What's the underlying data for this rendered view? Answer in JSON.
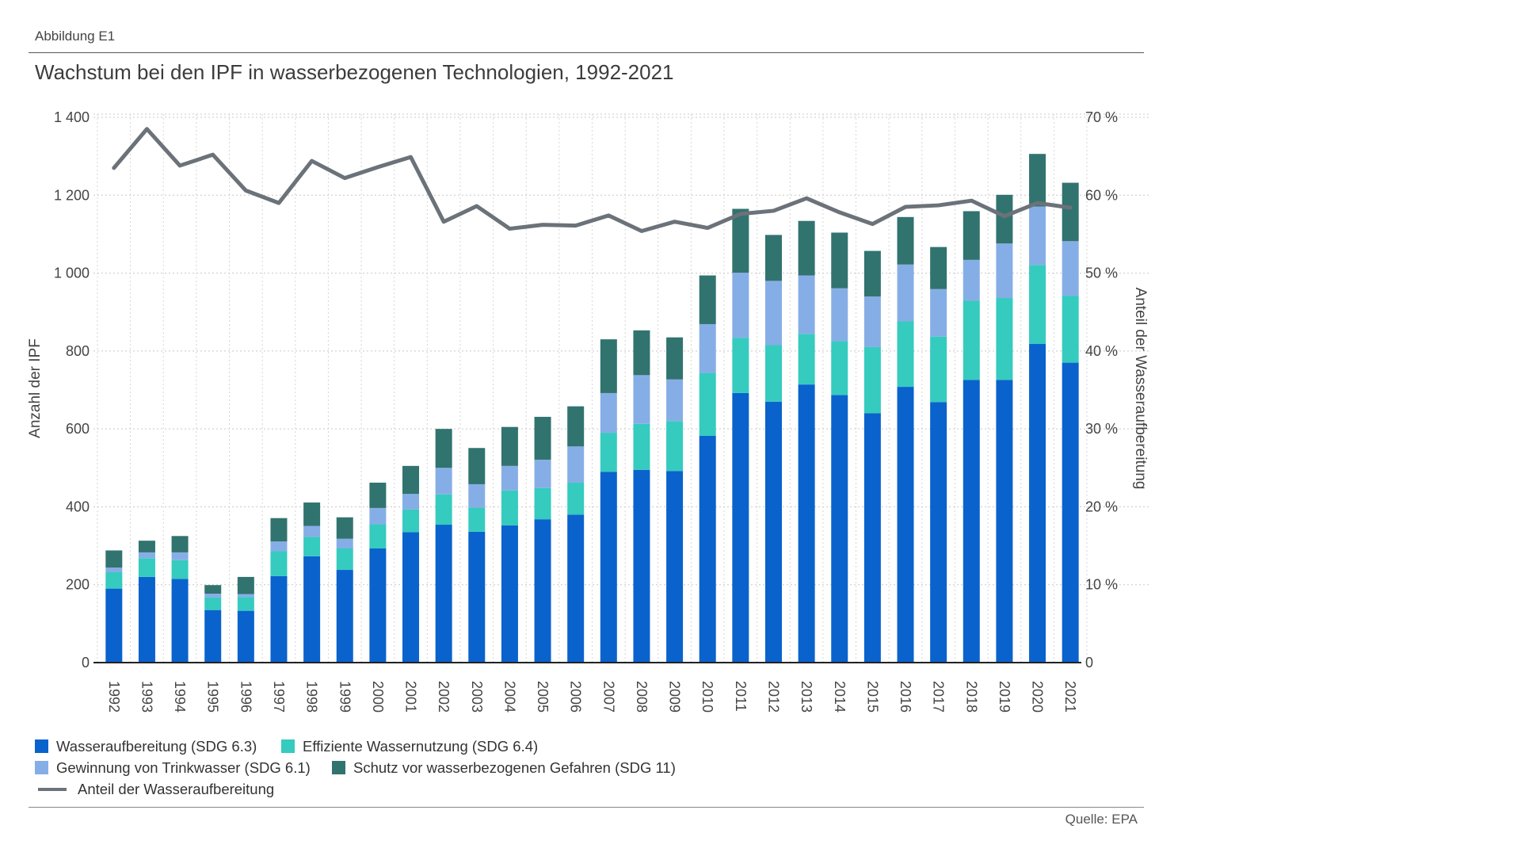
{
  "figure_label": "Abbildung E1",
  "chart_data": {
    "type": "bar",
    "stacked": true,
    "title": "Wachstum bei den IPF in wasserbezogenen Technologien, 1992-2021",
    "ylabel": "Anzahl der IPF",
    "y2label": "Anteil der Wasseraufbereitung",
    "ylim": [
      0,
      1400
    ],
    "y2lim": [
      0,
      70
    ],
    "yticks": [
      "0",
      "200",
      "400",
      "600",
      "800",
      "1 000",
      "1 200",
      "1 400"
    ],
    "y2ticks": [
      "0",
      "10 %",
      "20 %",
      "30 %",
      "40 %",
      "50 %",
      "60 %",
      "70 %"
    ],
    "grid": true,
    "legend_position": "bottom-left",
    "categories": [
      "1992",
      "1993",
      "1994",
      "1995",
      "1996",
      "1997",
      "1998",
      "1999",
      "2000",
      "2001",
      "2002",
      "2003",
      "2004",
      "2005",
      "2006",
      "2007",
      "2008",
      "2009",
      "2010",
      "2011",
      "2012",
      "2013",
      "2014",
      "2015",
      "2016",
      "2017",
      "2018",
      "2019",
      "2020",
      "2021"
    ],
    "series": [
      {
        "name": "Wasseraufbereitung (SDG 6.3)",
        "color": "#0a62cd",
        "values": [
          190,
          220,
          215,
          135,
          133,
          222,
          273,
          238,
          293,
          335,
          354,
          336,
          352,
          368,
          380,
          490,
          495,
          492,
          582,
          692,
          670,
          714,
          687,
          640,
          708,
          669,
          726,
          726,
          818,
          770
        ]
      },
      {
        "name": "Effiziente Wassernutzung (SDG 6.4)",
        "color": "#35cbbf",
        "values": [
          42,
          48,
          48,
          32,
          35,
          64,
          50,
          55,
          62,
          58,
          78,
          62,
          90,
          80,
          82,
          100,
          118,
          128,
          162,
          142,
          145,
          130,
          138,
          170,
          168,
          168,
          203,
          210,
          203,
          172
        ]
      },
      {
        "name": "Gewinnung von Trinkwasser (SDG 6.1)",
        "color": "#86aee6",
        "values": [
          12,
          15,
          20,
          10,
          8,
          25,
          28,
          25,
          42,
          40,
          68,
          60,
          63,
          73,
          93,
          102,
          125,
          107,
          125,
          167,
          165,
          150,
          136,
          130,
          146,
          122,
          105,
          140,
          150,
          140
        ]
      },
      {
        "name": "Schutz vor wasserbezogenen Gefahren (SDG 11)",
        "color": "#31736f",
        "values": [
          44,
          30,
          42,
          22,
          44,
          60,
          60,
          55,
          65,
          72,
          100,
          93,
          100,
          110,
          103,
          138,
          115,
          108,
          125,
          164,
          118,
          140,
          143,
          117,
          122,
          108,
          125,
          125,
          135,
          150
        ]
      }
    ],
    "line": {
      "name": "Anteil der Wasseraufbereitung",
      "color": "#6b7279",
      "axis": "right",
      "values": [
        63.5,
        68.5,
        63.8,
        65.2,
        60.6,
        59,
        64.4,
        62.2,
        63.6,
        64.9,
        56.6,
        58.6,
        55.7,
        56.2,
        56.1,
        57.4,
        55.4,
        56.6,
        55.8,
        57.6,
        58,
        59.6,
        57.8,
        56.3,
        58.5,
        58.7,
        59.3,
        57.3,
        59,
        58.4
      ]
    }
  },
  "source": "Quelle: EPA"
}
